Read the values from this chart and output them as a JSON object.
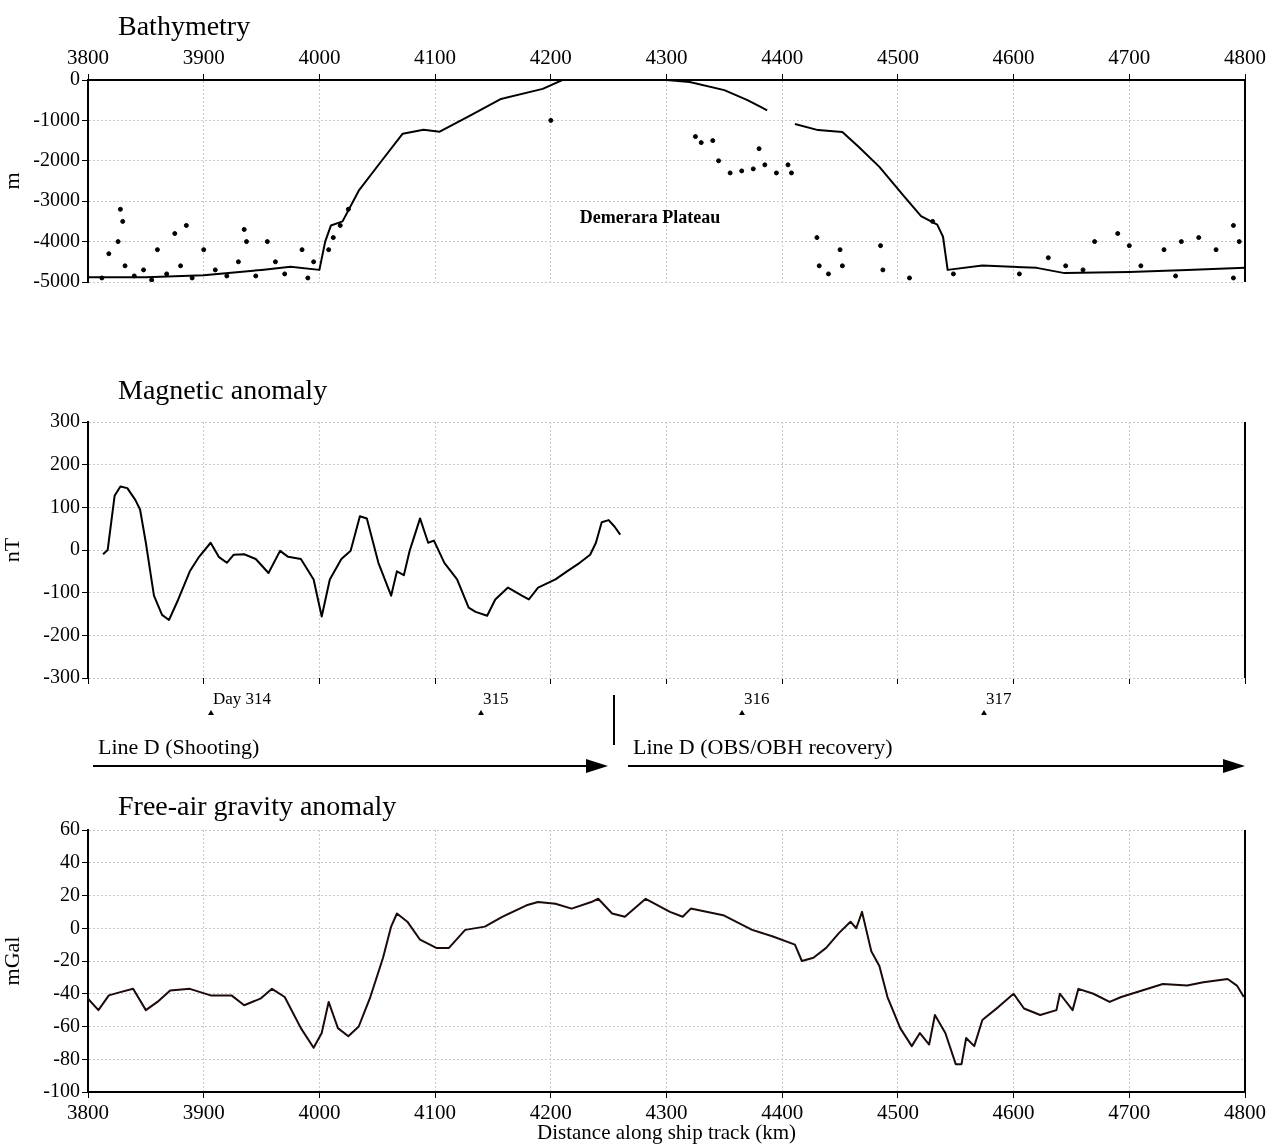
{
  "chart_data": [
    {
      "type": "line",
      "title": "Bathymetry",
      "ylabel": "m",
      "xlim": [
        3800,
        4800
      ],
      "xticks": [
        3800,
        3900,
        4000,
        4100,
        4200,
        4300,
        4400,
        4500,
        4600,
        4700,
        4800
      ],
      "ylim": [
        -5000,
        0
      ],
      "yticks": [
        -5000,
        -4000,
        -3000,
        -2000,
        -1000,
        0
      ],
      "grid": true,
      "x": [
        3800,
        3850,
        3900,
        3950,
        3975,
        4000,
        4005,
        4010,
        4020,
        4034,
        4053,
        4072,
        4090,
        4104,
        4129,
        4157,
        4193,
        4210,
        4250,
        4300,
        4320,
        4350,
        4370,
        4387,
        4400,
        4411,
        4431,
        4452,
        4466,
        4484,
        4505,
        4520,
        4534,
        4539,
        4543,
        4573,
        4620,
        4644,
        4700,
        4750,
        4800
      ],
      "series": [
        {
          "color": "#000000",
          "values": [
            -4880,
            -4880,
            -4830,
            -4700,
            -4620,
            -4700,
            -4000,
            -3600,
            -3500,
            -2740,
            -2030,
            -1330,
            -1230,
            -1280,
            -900,
            -470,
            -220,
            0,
            0,
            0,
            -50,
            -250,
            -500,
            -750,
            null,
            -1090,
            -1240,
            -1290,
            -1650,
            -2150,
            -2870,
            -3370,
            -3580,
            -3880,
            -4700,
            -4590,
            -4650,
            -4780,
            -4750,
            -4700,
            -4650
          ]
        },
        {
          "type": "scatter",
          "color": "#000000",
          "marker": "circle",
          "x": [
            3812,
            3818,
            3826,
            3828,
            3830,
            3832,
            3840,
            3848,
            3855,
            3860,
            3868,
            3875,
            3880,
            3885,
            3890,
            3900,
            3910,
            3920,
            3930,
            3935,
            3937,
            3945,
            3955,
            3962,
            3970,
            3985,
            3990,
            3995,
            4008,
            4012,
            4018,
            4025,
            4200,
            4325,
            4330,
            4340,
            4345,
            4355,
            4365,
            4375,
            4380,
            4385,
            4395,
            4405,
            4408,
            4430,
            4432,
            4440,
            4450,
            4452,
            4485,
            4487,
            4510,
            4530,
            4548,
            4605,
            4630,
            4645,
            4670,
            4690,
            4700,
            4730,
            4745,
            4760,
            4775,
            4790,
            4795,
            4790,
            4740,
            4710,
            4660
          ],
          "values": [
            -4900,
            -4300,
            -4000,
            -3200,
            -3500,
            -4600,
            -4850,
            -4700,
            -4950,
            -4200,
            -4800,
            -3800,
            -4600,
            -3600,
            -4900,
            -4200,
            -4700,
            -4850,
            -4500,
            -3700,
            -4000,
            -4850,
            -4000,
            -4500,
            -4800,
            -4200,
            -4900,
            -4500,
            -4200,
            -3900,
            -3600,
            -3200,
            -1000,
            -1400,
            -1550,
            -1500,
            -2000,
            -2300,
            -2250,
            -2200,
            -1700,
            -2100,
            -2300,
            -2100,
            -2300,
            -3900,
            -4600,
            -4800,
            -4200,
            -4600,
            -4100,
            -4700,
            -4900,
            -3500,
            -4800,
            -4800,
            -4400,
            -4600,
            -4000,
            -3800,
            -4100,
            -4200,
            -4000,
            -3900,
            -4200,
            -3600,
            -4000,
            -4900,
            -4850,
            -4600,
            -4700
          ]
        }
      ],
      "annotations": [
        "Demerara Plateau"
      ]
    },
    {
      "type": "line",
      "title": "Magnetic anomaly",
      "ylabel": "nT",
      "xlim": [
        3800,
        4800
      ],
      "xticks": [
        3800,
        3900,
        4000,
        4100,
        4200,
        4300,
        4400,
        4500,
        4600,
        4700,
        4800
      ],
      "ylim": [
        -300,
        300
      ],
      "yticks": [
        -300,
        -200,
        -100,
        0,
        100,
        200,
        300
      ],
      "grid": true,
      "tick_labels": "y",
      "x": [
        3813,
        3817,
        3823,
        3828,
        3834,
        3841,
        3845,
        3850,
        3857,
        3864,
        3870,
        3878,
        3888,
        3896,
        3906,
        3913,
        3920,
        3926,
        3935,
        3945,
        3956,
        3966,
        3973,
        3984,
        3995,
        4002,
        4009,
        4019,
        4027,
        4035,
        4041,
        4051,
        4062,
        4067,
        4073,
        4078,
        4087,
        4094,
        4099,
        4108,
        4119,
        4129,
        4135,
        4145,
        4152,
        4163,
        4175,
        4181,
        4189,
        4204,
        4214,
        4225,
        4234,
        4239,
        4244,
        4250,
        4255,
        4260
      ],
      "series": [
        {
          "color": "#000000",
          "values": [
            -10,
            0,
            127,
            149,
            145,
            117,
            95,
            17,
            -107,
            -152,
            -164,
            -116,
            -50,
            -16,
            17,
            -16,
            -30,
            -11,
            -10,
            -21,
            -54,
            -2,
            -16,
            -21,
            -69,
            -156,
            -69,
            -21,
            -2,
            79,
            74,
            -30,
            -107,
            -50,
            -59,
            -2,
            74,
            17,
            22,
            -30,
            -69,
            -135,
            -145,
            -154,
            -116,
            -88,
            -107,
            -116,
            -88,
            -69,
            -50,
            -30,
            -11,
            17,
            65,
            70,
            55,
            36
          ]
        }
      ],
      "annotations": [
        "Day 314",
        "315",
        "316",
        "317",
        "Line D (Shooting)",
        "Line D (OBS/OBH recovery)"
      ]
    },
    {
      "type": "line",
      "title": "Free-air gravity anomaly",
      "xlabel": "Distance along ship track (km)",
      "ylabel": "mGal",
      "xlim": [
        3800,
        4800
      ],
      "xticks": [
        3800,
        3900,
        4000,
        4100,
        4200,
        4300,
        4400,
        4500,
        4600,
        4700,
        4800
      ],
      "ylim": [
        -100,
        60
      ],
      "yticks": [
        -100,
        -80,
        -60,
        -40,
        -20,
        0,
        20,
        40,
        60
      ],
      "grid": true,
      "x": [
        3800,
        3809,
        3818,
        3828,
        3839,
        3850,
        3860,
        3871,
        3888,
        3906,
        3924,
        3935,
        3949,
        3959,
        3970,
        3984,
        3995,
        4002,
        4008,
        4016,
        4025,
        4034,
        4044,
        4055,
        4062,
        4067,
        4076,
        4087,
        4101,
        4112,
        4126,
        4143,
        4158,
        4179,
        4189,
        4204,
        4218,
        4235,
        4241,
        4253,
        4264,
        4282,
        4303,
        4314,
        4321,
        4349,
        4374,
        4392,
        4411,
        4417,
        4427,
        4438,
        4449,
        4459,
        4464,
        4469,
        4477,
        4484,
        4491,
        4502,
        4512,
        4519,
        4527,
        4532,
        4541,
        4550,
        4555,
        4559,
        4566,
        4573,
        4587,
        4600,
        4609,
        4623,
        4637,
        4640,
        4651,
        4656,
        4669,
        4683,
        4693,
        4711,
        4729,
        4750,
        4764,
        4785,
        4793,
        4799
      ],
      "series": [
        {
          "color": "#1a0a0a",
          "values": [
            -43,
            -50,
            -41,
            -39,
            -37,
            -50,
            -45,
            -38,
            -37,
            -41,
            -41,
            -47,
            -43,
            -37,
            -42,
            -61,
            -73,
            -64,
            -45,
            -61,
            -66,
            -60,
            -42,
            -18,
            1,
            9,
            4,
            -7,
            -12,
            -12,
            -1,
            1,
            7,
            14,
            16,
            15,
            12,
            16,
            18,
            9,
            7,
            18,
            10,
            7,
            12,
            8,
            -1,
            -5,
            -10,
            -20,
            -18,
            -12,
            -3,
            4,
            0,
            10,
            -14,
            -23,
            -42,
            -61,
            -72,
            -64,
            -71,
            -53,
            -64,
            -83,
            -83,
            -67,
            -72,
            -56,
            -48,
            -40,
            -49,
            -53,
            -50,
            -40,
            -50,
            -37,
            -40,
            -45,
            -42,
            -38,
            -34,
            -35,
            -33,
            -31,
            -35,
            -42
          ]
        }
      ]
    }
  ]
}
